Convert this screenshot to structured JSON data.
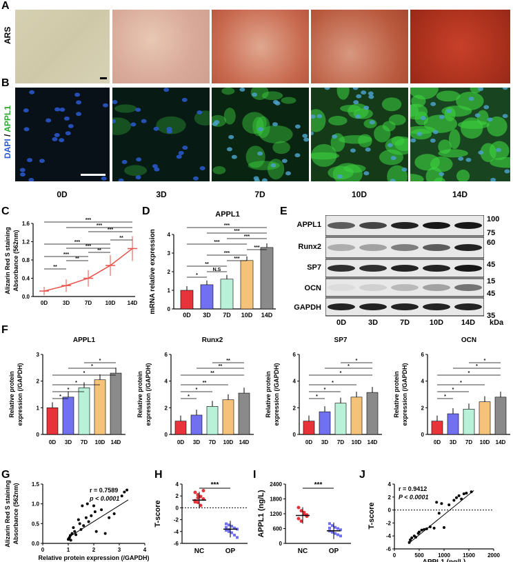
{
  "panels": {
    "A": "A",
    "B": "B",
    "C": "C",
    "D": "D",
    "E": "E",
    "F": "F",
    "G": "G",
    "H": "H",
    "I": "I",
    "J": "J"
  },
  "row_labels": {
    "ars": "ARS",
    "dapi": "DAPI",
    "slash": " / ",
    "appl1": "APPL1"
  },
  "timepoints": [
    "0D",
    "3D",
    "7D",
    "10D",
    "14D"
  ],
  "colors": {
    "bar0": "#e8333a",
    "bar1": "#7070f0",
    "bar2": "#b8f0d8",
    "bar3": "#f5c27a",
    "bar4": "#8a8a8a",
    "line": "#e8504a",
    "dapi": "#2a5bd0",
    "appl1": "#3cd040"
  },
  "panelC": {
    "chart_data": {
      "type": "line",
      "x": [
        "0D",
        "3D",
        "7D",
        "10D",
        "14D"
      ],
      "values": [
        0.12,
        0.24,
        0.4,
        0.68,
        1.05
      ],
      "ylabel_line1": "Alizarin Red S staining",
      "ylabel_line2": "Absorbance (562nm)",
      "ylim": [
        0,
        1.6
      ],
      "yticks": [
        "0.0",
        "0.4",
        "0.8",
        "1.2",
        "1.6"
      ],
      "sig": [
        "**",
        "**",
        "**",
        "**",
        "***",
        "***",
        "***",
        "***",
        "***",
        "***"
      ]
    }
  },
  "panelD": {
    "chart_data": {
      "type": "bar",
      "title": "APPL1",
      "categories": [
        "0D",
        "3D",
        "7D",
        "10D",
        "14D"
      ],
      "values": [
        1.0,
        1.3,
        1.6,
        2.6,
        3.3
      ],
      "ylabel": "mRNA relative expression",
      "ylim": [
        0,
        4
      ],
      "yticks": [
        "0",
        "1",
        "2",
        "3",
        "4"
      ],
      "sig": [
        "*",
        "N.S",
        "**",
        "***",
        "***",
        "***",
        "***",
        "***",
        "***",
        "***"
      ]
    }
  },
  "panelE": {
    "proteins": [
      "APPL1",
      "Runx2",
      "SP7",
      "OCN",
      "GAPDH"
    ],
    "mw_right": [
      "100",
      "75",
      "60",
      "45",
      "15",
      "45",
      "35"
    ],
    "kda": "kDa",
    "lanes": [
      "0D",
      "3D",
      "7D",
      "10D",
      "14D"
    ]
  },
  "panelF": {
    "ylabel_line1": "Relative protein",
    "ylabel_line2": "expression (/GAPDH)",
    "chart_data": [
      {
        "type": "bar",
        "title": "APPL1",
        "categories": [
          "0D",
          "3D",
          "7D",
          "10D",
          "14D"
        ],
        "values": [
          1.0,
          1.4,
          1.75,
          2.05,
          2.3
        ],
        "ylim": [
          0,
          3
        ],
        "yticks": [
          "0",
          "1",
          "2",
          "3"
        ],
        "sig": [
          "*",
          "*",
          "*",
          "*",
          "*",
          "*"
        ]
      },
      {
        "type": "bar",
        "title": "Runx2",
        "categories": [
          "0D",
          "3D",
          "7D",
          "10D",
          "14D"
        ],
        "values": [
          1.0,
          1.45,
          2.1,
          2.6,
          3.1
        ],
        "ylim": [
          0,
          6
        ],
        "yticks": [
          "0",
          "2",
          "4",
          "6"
        ],
        "sig": [
          "*",
          "*",
          "**",
          "**",
          "**",
          "**"
        ]
      },
      {
        "type": "bar",
        "title": "SP7",
        "categories": [
          "0D",
          "3D",
          "7D",
          "10D",
          "14D"
        ],
        "values": [
          1.0,
          1.7,
          2.35,
          2.8,
          3.15
        ],
        "ylim": [
          0,
          6
        ],
        "yticks": [
          "0",
          "2",
          "4",
          "6"
        ],
        "sig": [
          "*",
          "*",
          "*",
          "*",
          "*",
          "*"
        ]
      },
      {
        "type": "bar",
        "title": "OCN",
        "categories": [
          "0D",
          "3D",
          "7D",
          "10D",
          "14D"
        ],
        "values": [
          1.0,
          1.55,
          1.9,
          2.45,
          2.8
        ],
        "ylim": [
          0,
          6
        ],
        "yticks": [
          "0",
          "2",
          "4",
          "6"
        ],
        "sig": [
          "*",
          "*",
          "*",
          "*",
          "*",
          "*"
        ]
      }
    ]
  },
  "panelG": {
    "chart_data": {
      "type": "scatter",
      "stat_r": "r = 0.7589",
      "stat_p": "p < 0.0001",
      "xlabel": "Relative protein expression (/GAPDH)",
      "ylabel_line1": "Alizarin Red S staining",
      "ylabel_line2": "Absorbance (562nm)",
      "xlim": [
        0,
        4
      ],
      "ylim": [
        0,
        1.5
      ],
      "xticks": [
        "0",
        "1",
        "2",
        "3",
        "4"
      ],
      "yticks": [
        "0.0",
        "0.5",
        "1.0",
        "1.5"
      ],
      "x": [
        1.0,
        1.02,
        1.05,
        1.08,
        1.1,
        1.15,
        1.2,
        1.25,
        1.3,
        1.4,
        1.45,
        1.5,
        1.55,
        1.6,
        1.7,
        1.75,
        1.8,
        1.9,
        2.0,
        2.05,
        2.1,
        2.3,
        2.45,
        2.6,
        2.8,
        3.1,
        3.2,
        3.3
      ],
      "y": [
        0.1,
        0.12,
        0.15,
        0.2,
        0.08,
        0.25,
        0.4,
        0.3,
        0.22,
        0.6,
        0.5,
        0.35,
        0.95,
        0.45,
        0.65,
        1.0,
        0.55,
        0.7,
        0.95,
        0.8,
        0.3,
        0.85,
        0.25,
        0.65,
        0.75,
        1.2,
        1.3,
        1.35
      ]
    }
  },
  "panelH": {
    "chart_data": {
      "type": "scatter",
      "categories": [
        "NC",
        "OP"
      ],
      "ylabel": "T-score",
      "ylim": [
        -6,
        4
      ],
      "yticks": [
        "-6",
        "-4",
        "-2",
        "0",
        "2",
        "4"
      ],
      "means": [
        1.3,
        -3.6
      ],
      "sig": "***",
      "NC": [
        2.6,
        2.2,
        1.9,
        1.5,
        1.2,
        0.9,
        0.4,
        2.9,
        1.0,
        1.7
      ],
      "OP": [
        -2.7,
        -2.9,
        -3.1,
        -3.4,
        -3.6,
        -3.8,
        -4.0,
        -4.2,
        -4.6,
        -5.0,
        -3.3,
        -3.7
      ]
    }
  },
  "panelI": {
    "chart_data": {
      "type": "scatter",
      "categories": [
        "NC",
        "OP"
      ],
      "ylabel": "APPL1 (ng/L)",
      "ylim": [
        0,
        2400
      ],
      "yticks": [
        "0",
        "600",
        "1200",
        "1800",
        "2400"
      ],
      "means": [
        1130,
        510
      ],
      "sig": "***",
      "NC": [
        1450,
        1320,
        1200,
        1100,
        1000,
        900,
        1250,
        1150
      ],
      "OP": [
        800,
        720,
        650,
        600,
        550,
        500,
        450,
        400,
        350,
        300,
        620,
        480
      ]
    }
  },
  "panelJ": {
    "chart_data": {
      "type": "scatter",
      "stat_r": "r = 0.9412",
      "stat_p": "P < 0.0001",
      "xlabel": "APPL1 (ng/L)",
      "ylabel": "T-score",
      "xlim": [
        0,
        2000
      ],
      "ylim": [
        -6,
        4
      ],
      "xticks": [
        "0",
        "500",
        "1000",
        "1500",
        "2000"
      ],
      "yticks": [
        "-6",
        "-4",
        "-2",
        "0",
        "2",
        "4"
      ],
      "x": [
        300,
        320,
        350,
        400,
        430,
        480,
        500,
        550,
        600,
        650,
        720,
        800,
        850,
        900,
        950,
        1000,
        1100,
        1200,
        1250,
        1300,
        1350,
        1400,
        1450,
        1550
      ],
      "y": [
        -5.0,
        -4.6,
        -4.3,
        -4.0,
        -4.2,
        -3.6,
        -3.4,
        -3.1,
        -3.0,
        -2.9,
        -2.6,
        -2.8,
        1.2,
        -0.5,
        1.0,
        -2.7,
        0.8,
        1.5,
        1.9,
        2.2,
        1.7,
        2.5,
        2.6,
        2.8
      ]
    }
  }
}
